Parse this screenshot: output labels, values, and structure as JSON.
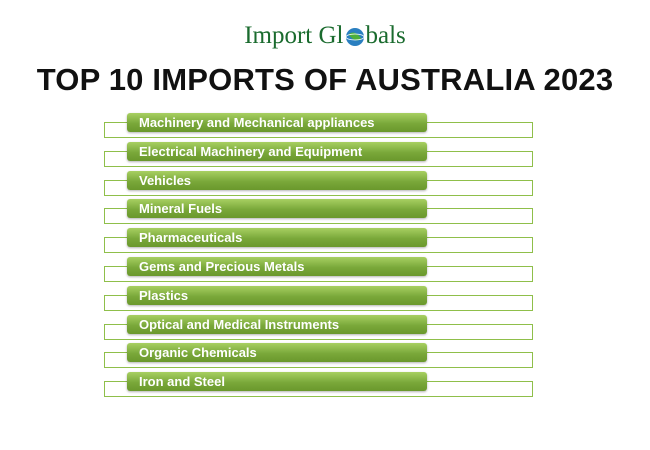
{
  "logo": {
    "before": "Import Gl",
    "after": "bals"
  },
  "title": "TOP 10 IMPORTS OF AUSTRALIA 2023",
  "items": [
    "Machinery and Mechanical appliances",
    "Electrical Machinery and Equipment",
    "Vehicles",
    "Mineral Fuels",
    "Pharmaceuticals",
    "Gems and Precious Metals",
    "Plastics",
    "Optical and Medical Instruments",
    "Organic Chemicals",
    "Iron and Steel"
  ]
}
